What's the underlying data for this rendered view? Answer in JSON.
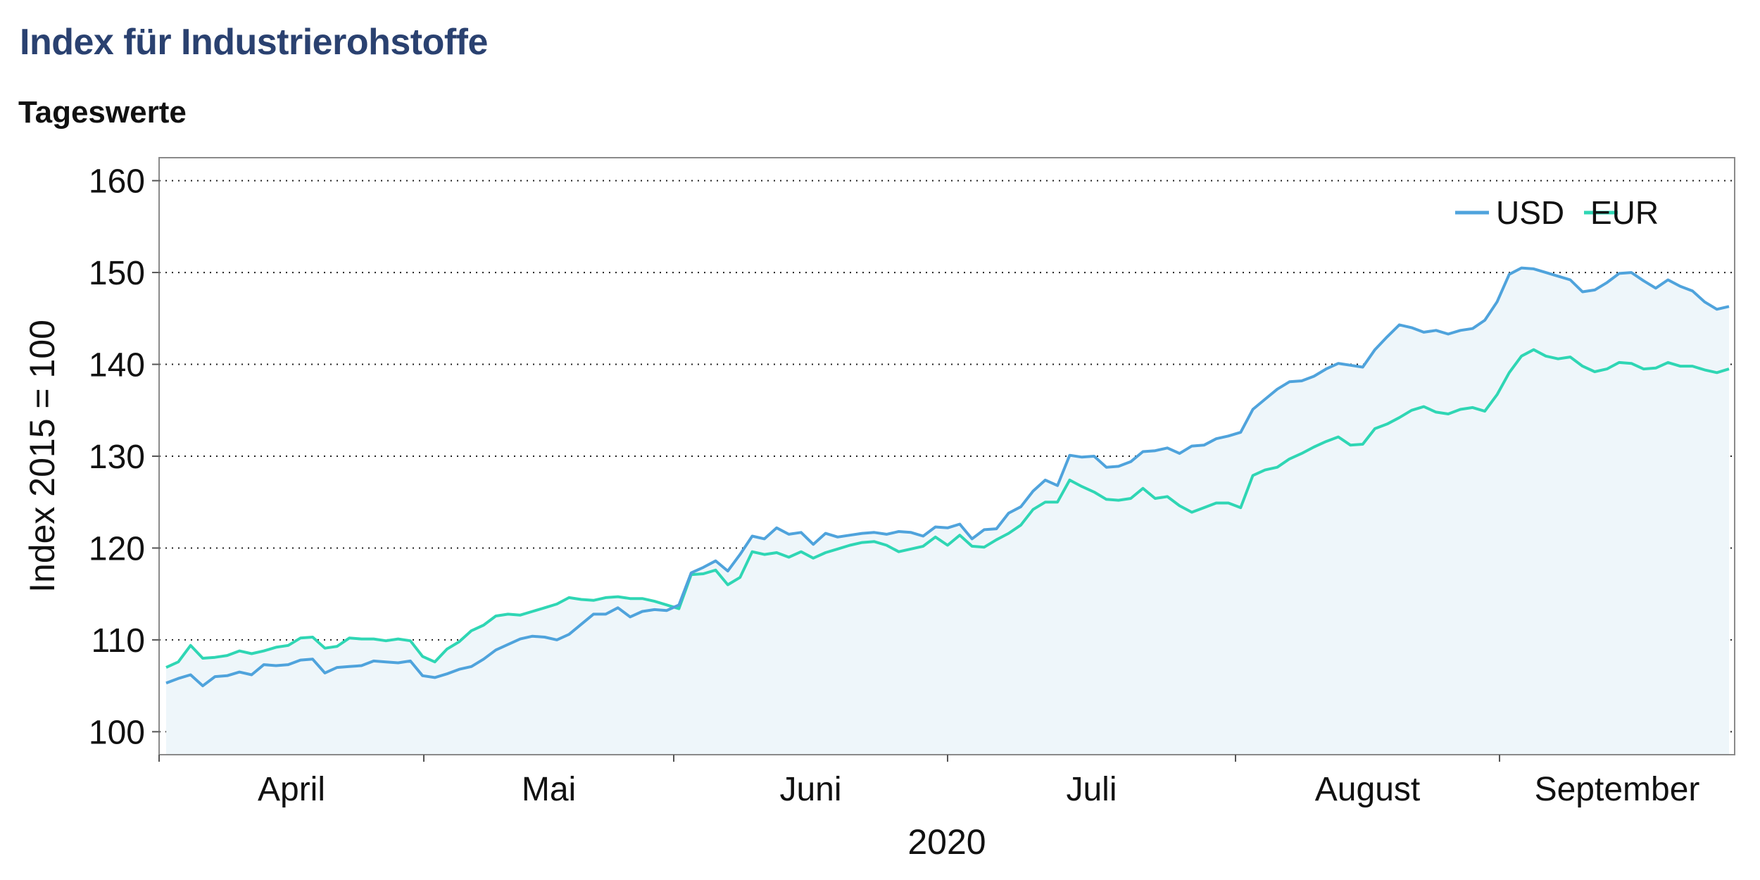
{
  "header": {
    "title": "Index für Industrierohstoffe",
    "subtitle": "Tageswerte"
  },
  "chart_data": {
    "type": "area",
    "title": "Index für Industrierohstoffe",
    "subtitle": "Tageswerte",
    "xlabel": "2020",
    "ylabel": "Index 2015 = 100",
    "ylim": [
      97.5,
      162.5
    ],
    "yticks": [
      100,
      110,
      120,
      130,
      140,
      150,
      160
    ],
    "xticklabels": [
      "April",
      "Mai",
      "Juni",
      "Juli",
      "August",
      "September"
    ],
    "legend": [
      "USD",
      "EUR"
    ],
    "legend_position": "top-right",
    "grid": "horizontal dotted",
    "colors": {
      "USD": "#4fa3dc",
      "EUR": "#2fd6b4",
      "area": "#eef6fa",
      "title": "#2a4170"
    },
    "series": [
      {
        "name": "USD",
        "values": [
          105.3,
          105.8,
          106.2,
          105.0,
          106.0,
          106.1,
          106.5,
          106.2,
          107.3,
          107.2,
          107.3,
          107.8,
          107.9,
          106.4,
          107.0,
          107.1,
          107.2,
          107.7,
          107.6,
          107.5,
          107.7,
          106.1,
          105.9,
          106.3,
          106.8,
          107.1,
          107.9,
          108.9,
          109.5,
          110.1,
          110.4,
          110.3,
          110.0,
          110.6,
          111.7,
          112.8,
          112.8,
          113.5,
          112.5,
          113.1,
          113.3,
          113.2,
          113.8,
          117.3,
          117.9,
          118.6,
          117.5,
          119.3,
          121.3,
          121.0,
          122.2,
          121.5,
          121.7,
          120.4,
          121.6,
          121.2,
          121.4,
          121.6,
          121.7,
          121.5,
          121.8,
          121.7,
          121.3,
          122.3,
          122.2,
          122.6,
          121.0,
          122.0,
          122.1,
          123.8,
          124.5,
          126.2,
          127.4,
          126.8,
          130.1,
          129.9,
          130.0,
          128.8,
          128.9,
          129.4,
          130.5,
          130.6,
          130.9,
          130.3,
          131.1,
          131.2,
          131.9,
          132.2,
          132.6,
          135.1,
          136.2,
          137.3,
          138.1,
          138.2,
          138.7,
          139.5,
          140.1,
          139.9,
          139.7,
          141.6,
          143.0,
          144.3,
          144.0,
          143.5,
          143.7,
          143.3,
          143.7,
          143.9,
          144.8,
          146.8,
          149.8,
          150.5,
          150.4,
          150.0,
          149.6,
          149.2,
          147.9,
          148.1,
          148.9,
          149.9,
          150.0,
          149.1,
          148.3,
          149.2,
          148.5,
          148.0,
          146.8,
          146.0,
          146.3
        ]
      },
      {
        "name": "EUR",
        "values": [
          107.0,
          107.6,
          109.4,
          108.0,
          108.1,
          108.3,
          108.8,
          108.5,
          108.8,
          109.2,
          109.4,
          110.2,
          110.3,
          109.1,
          109.3,
          110.2,
          110.1,
          110.1,
          109.9,
          110.1,
          109.9,
          108.2,
          107.6,
          109.0,
          109.8,
          111.0,
          111.6,
          112.6,
          112.8,
          112.7,
          113.1,
          113.5,
          113.9,
          114.6,
          114.4,
          114.3,
          114.6,
          114.7,
          114.5,
          114.5,
          114.2,
          113.8,
          113.4,
          117.1,
          117.2,
          117.6,
          116.0,
          116.8,
          119.6,
          119.3,
          119.5,
          119.0,
          119.6,
          118.9,
          119.5,
          119.9,
          120.3,
          120.6,
          120.7,
          120.3,
          119.6,
          119.9,
          120.2,
          121.2,
          120.3,
          121.4,
          120.2,
          120.1,
          120.9,
          121.6,
          122.5,
          124.2,
          125.0,
          125.0,
          127.4,
          126.7,
          126.1,
          125.3,
          125.2,
          125.4,
          126.5,
          125.4,
          125.6,
          124.6,
          123.9,
          124.4,
          124.9,
          124.9,
          124.4,
          127.9,
          128.5,
          128.8,
          129.7,
          130.3,
          131.0,
          131.6,
          132.1,
          131.2,
          131.3,
          133.0,
          133.5,
          134.2,
          135.0,
          135.4,
          134.8,
          134.6,
          135.1,
          135.3,
          134.9,
          136.7,
          139.1,
          140.9,
          141.6,
          140.9,
          140.6,
          140.8,
          139.8,
          139.2,
          139.5,
          140.2,
          140.1,
          139.5,
          139.6,
          140.2,
          139.8,
          139.8,
          139.4,
          139.1,
          139.5
        ]
      }
    ]
  }
}
